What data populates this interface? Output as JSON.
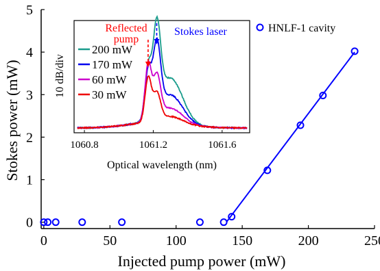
{
  "chart_data": [
    {
      "type": "scatter",
      "xlabel": "Injected pump power (mW)",
      "ylabel": "Stokes power (mW)",
      "xlim": [
        -2,
        250
      ],
      "ylim": [
        -0.15,
        5
      ],
      "x_ticks": [
        0,
        50,
        100,
        150,
        200,
        250
      ],
      "y_ticks": [
        0,
        1,
        2,
        3,
        4,
        5
      ],
      "legend_position": "top-right",
      "colors": {
        "series": "#0000ff"
      },
      "series": [
        {
          "name": "HNLF-1 cavity",
          "x": [
            0,
            3,
            9,
            29,
            59,
            118,
            136,
            142,
            169,
            194,
            211,
            235
          ],
          "y": [
            0,
            0,
            0,
            0,
            0,
            0,
            0,
            0.13,
            1.22,
            2.28,
            2.98,
            4.02
          ]
        }
      ],
      "fit_line": {
        "x": [
          138,
          235
        ],
        "y": [
          0,
          4.0
        ]
      }
    },
    {
      "type": "line",
      "xlabel": "Optical wavelength (nm)",
      "ylabel": "10 dB/div",
      "xlim": [
        1060.74,
        1061.76
      ],
      "x_ticks": [
        1060.8,
        1061.2,
        1061.6
      ],
      "annotations": [
        {
          "text": "Reflected\npump",
          "color": "#ff0000",
          "lines": [
            "Reflected",
            "pump"
          ]
        },
        {
          "text": "Stokes laser",
          "color": "#0000ff",
          "lines": [
            "Stokes laser"
          ]
        }
      ],
      "annotation_wavelengths": {
        "pump": 1061.17,
        "stokes": 1061.22
      },
      "series": [
        {
          "name": "200 mW",
          "color": "#1a9c8c",
          "pump_level": 0.5,
          "stokes_level": 0.86,
          "shoulder": 0.48
        },
        {
          "name": "170 mW",
          "color": "#0000ee",
          "pump_level": 0.5,
          "stokes_level": 0.73,
          "shoulder": 0.3
        },
        {
          "name": "60 mW",
          "color": "#cc00cc",
          "pump_level": 0.59,
          "stokes_level": 0.44,
          "shoulder": 0.16
        },
        {
          "name": "30 mW",
          "color": "#ee0000",
          "pump_level": 0.46,
          "stokes_level": 0.29,
          "shoulder": 0.07
        }
      ]
    }
  ]
}
